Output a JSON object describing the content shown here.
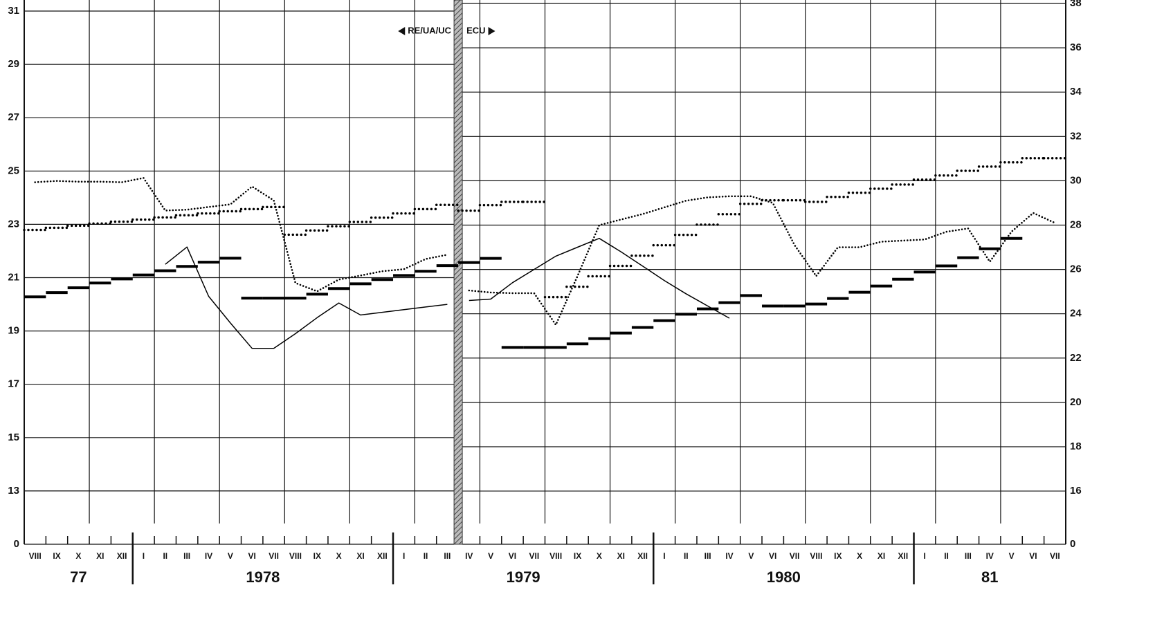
{
  "chart_data": {
    "type": "line",
    "annotations": [
      "RE/UA/UC",
      "ECU"
    ],
    "categories": [
      "VIII",
      "IX",
      "X",
      "XI",
      "XII",
      "I",
      "II",
      "III",
      "IV",
      "V",
      "VI",
      "VII",
      "VIII",
      "IX",
      "X",
      "XI",
      "XII",
      "I",
      "II",
      "III",
      "IV",
      "V",
      "VI",
      "VII",
      "VIII",
      "IX",
      "X",
      "XI",
      "XII",
      "I",
      "II",
      "III",
      "IV",
      "V",
      "VI",
      "VII",
      "VIII",
      "IX",
      "X",
      "XI",
      "XII",
      "I",
      "II",
      "III",
      "IV",
      "V",
      "VI",
      "VII"
    ],
    "years": [
      "77",
      "1978",
      "1979",
      "1980",
      "81"
    ],
    "ylim": [
      0,
      31
    ],
    "y_break": 11,
    "yticks": [
      0,
      13,
      15,
      17,
      19,
      21,
      23,
      25,
      27,
      29,
      31
    ],
    "y2lim": [
      0,
      38
    ],
    "y2_break": 13.6,
    "y2ticks": [
      0,
      16,
      18,
      20,
      22,
      24,
      26,
      28,
      30,
      32,
      34,
      36,
      38
    ],
    "grid": true,
    "series": [
      {
        "color": "#000",
        "style": "step-thick",
        "axis": "y",
        "values": [
          20.28,
          20.44,
          20.62,
          20.8,
          20.95,
          21.1,
          21.26,
          21.42,
          21.58,
          21.73,
          20.23,
          20.23,
          20.23,
          20.38,
          20.59,
          20.77,
          20.93,
          21.08,
          21.24,
          21.45,
          null,
          null,
          null,
          null,
          null,
          null,
          null,
          null,
          null,
          null,
          null,
          null,
          null,
          null,
          null,
          null,
          null,
          null,
          null,
          null,
          null,
          null,
          null,
          null,
          null,
          null,
          null,
          null
        ]
      },
      {
        "color": "#000",
        "style": "step-dotted",
        "axis": "y",
        "values": [
          22.79,
          22.87,
          22.95,
          23.03,
          23.1,
          23.18,
          23.26,
          23.34,
          23.41,
          23.49,
          23.57,
          23.65,
          22.61,
          22.77,
          22.93,
          23.09,
          23.25,
          23.41,
          23.57,
          23.73,
          null,
          null,
          null,
          null,
          null,
          null,
          null,
          null,
          null,
          null,
          null,
          null,
          null,
          null,
          null,
          null,
          null,
          null,
          null,
          null,
          null,
          null,
          null,
          null,
          null,
          null,
          null,
          null
        ]
      },
      {
        "color": "#000",
        "style": "dotted",
        "axis": "y",
        "values": [
          24.58,
          24.63,
          24.6,
          24.6,
          24.58,
          24.74,
          23.52,
          23.55,
          23.65,
          23.75,
          24.42,
          23.9,
          20.8,
          20.49,
          20.93,
          21.08,
          21.24,
          21.32,
          21.7,
          21.86,
          null,
          null,
          null,
          null,
          null,
          null,
          null,
          null,
          null,
          null,
          null,
          null,
          null,
          null,
          null,
          null,
          null,
          null,
          null,
          null,
          null,
          null,
          null,
          null,
          null,
          null,
          null,
          null
        ]
      },
      {
        "color": "#000",
        "style": "solid",
        "axis": "y",
        "values": [
          null,
          null,
          null,
          null,
          null,
          null,
          21.5,
          22.15,
          20.3,
          19.3,
          18.35,
          18.35,
          18.9,
          19.5,
          20.05,
          19.6,
          19.7,
          19.8,
          19.9,
          20.0,
          null,
          null,
          null,
          null,
          null,
          null,
          null,
          null,
          null,
          null,
          null,
          null,
          null,
          null,
          null,
          null,
          null,
          null,
          null,
          null,
          null,
          null,
          null,
          null,
          null,
          null,
          null,
          null
        ]
      },
      {
        "color": "#000",
        "style": "step-thick",
        "axis": "y2",
        "values": [
          null,
          null,
          null,
          null,
          null,
          null,
          null,
          null,
          null,
          null,
          null,
          null,
          null,
          null,
          null,
          null,
          null,
          null,
          null,
          null,
          26.31,
          26.5,
          22.48,
          22.48,
          22.48,
          22.64,
          22.88,
          23.13,
          23.38,
          23.69,
          23.98,
          24.22,
          24.5,
          24.82,
          24.35,
          24.35,
          24.44,
          24.69,
          24.97,
          25.25,
          25.56,
          25.88,
          26.16,
          26.53,
          26.93,
          27.4,
          null,
          null
        ]
      },
      {
        "color": "#000",
        "style": "step-dotted",
        "axis": "y2",
        "values": [
          null,
          null,
          null,
          null,
          null,
          null,
          null,
          null,
          null,
          null,
          null,
          null,
          null,
          null,
          null,
          null,
          null,
          null,
          null,
          null,
          28.65,
          28.9,
          29.05,
          29.05,
          24.75,
          25.22,
          25.69,
          26.16,
          26.62,
          27.09,
          27.56,
          28.02,
          28.49,
          28.96,
          29.12,
          29.12,
          29.05,
          29.27,
          29.46,
          29.64,
          29.83,
          30.05,
          30.24,
          30.45,
          30.64,
          30.83,
          31.02,
          31.02
        ]
      },
      {
        "color": "#000",
        "style": "dotted",
        "axis": "y2",
        "values": [
          null,
          null,
          null,
          null,
          null,
          null,
          null,
          null,
          null,
          null,
          null,
          null,
          null,
          null,
          null,
          null,
          null,
          null,
          null,
          null,
          25.05,
          24.96,
          24.93,
          24.93,
          23.5,
          25.7,
          28.0,
          28.25,
          28.5,
          28.8,
          29.1,
          29.25,
          29.3,
          29.3,
          29.0,
          27.1,
          25.7,
          27.0,
          27.0,
          27.25,
          27.3,
          27.35,
          27.7,
          27.85,
          26.35,
          27.7,
          28.55,
          28.1
        ]
      },
      {
        "color": "#000",
        "style": "solid",
        "axis": "y2",
        "values": [
          null,
          null,
          null,
          null,
          null,
          null,
          null,
          null,
          null,
          null,
          null,
          null,
          null,
          null,
          null,
          null,
          null,
          null,
          null,
          null,
          24.6,
          24.66,
          25.4,
          26.0,
          26.6,
          27.0,
          27.4,
          26.8,
          26.15,
          25.5,
          24.9,
          24.35,
          23.8,
          null,
          null,
          null,
          null,
          null,
          null,
          null,
          null,
          null,
          null,
          null,
          null,
          null,
          null,
          null
        ]
      }
    ]
  }
}
